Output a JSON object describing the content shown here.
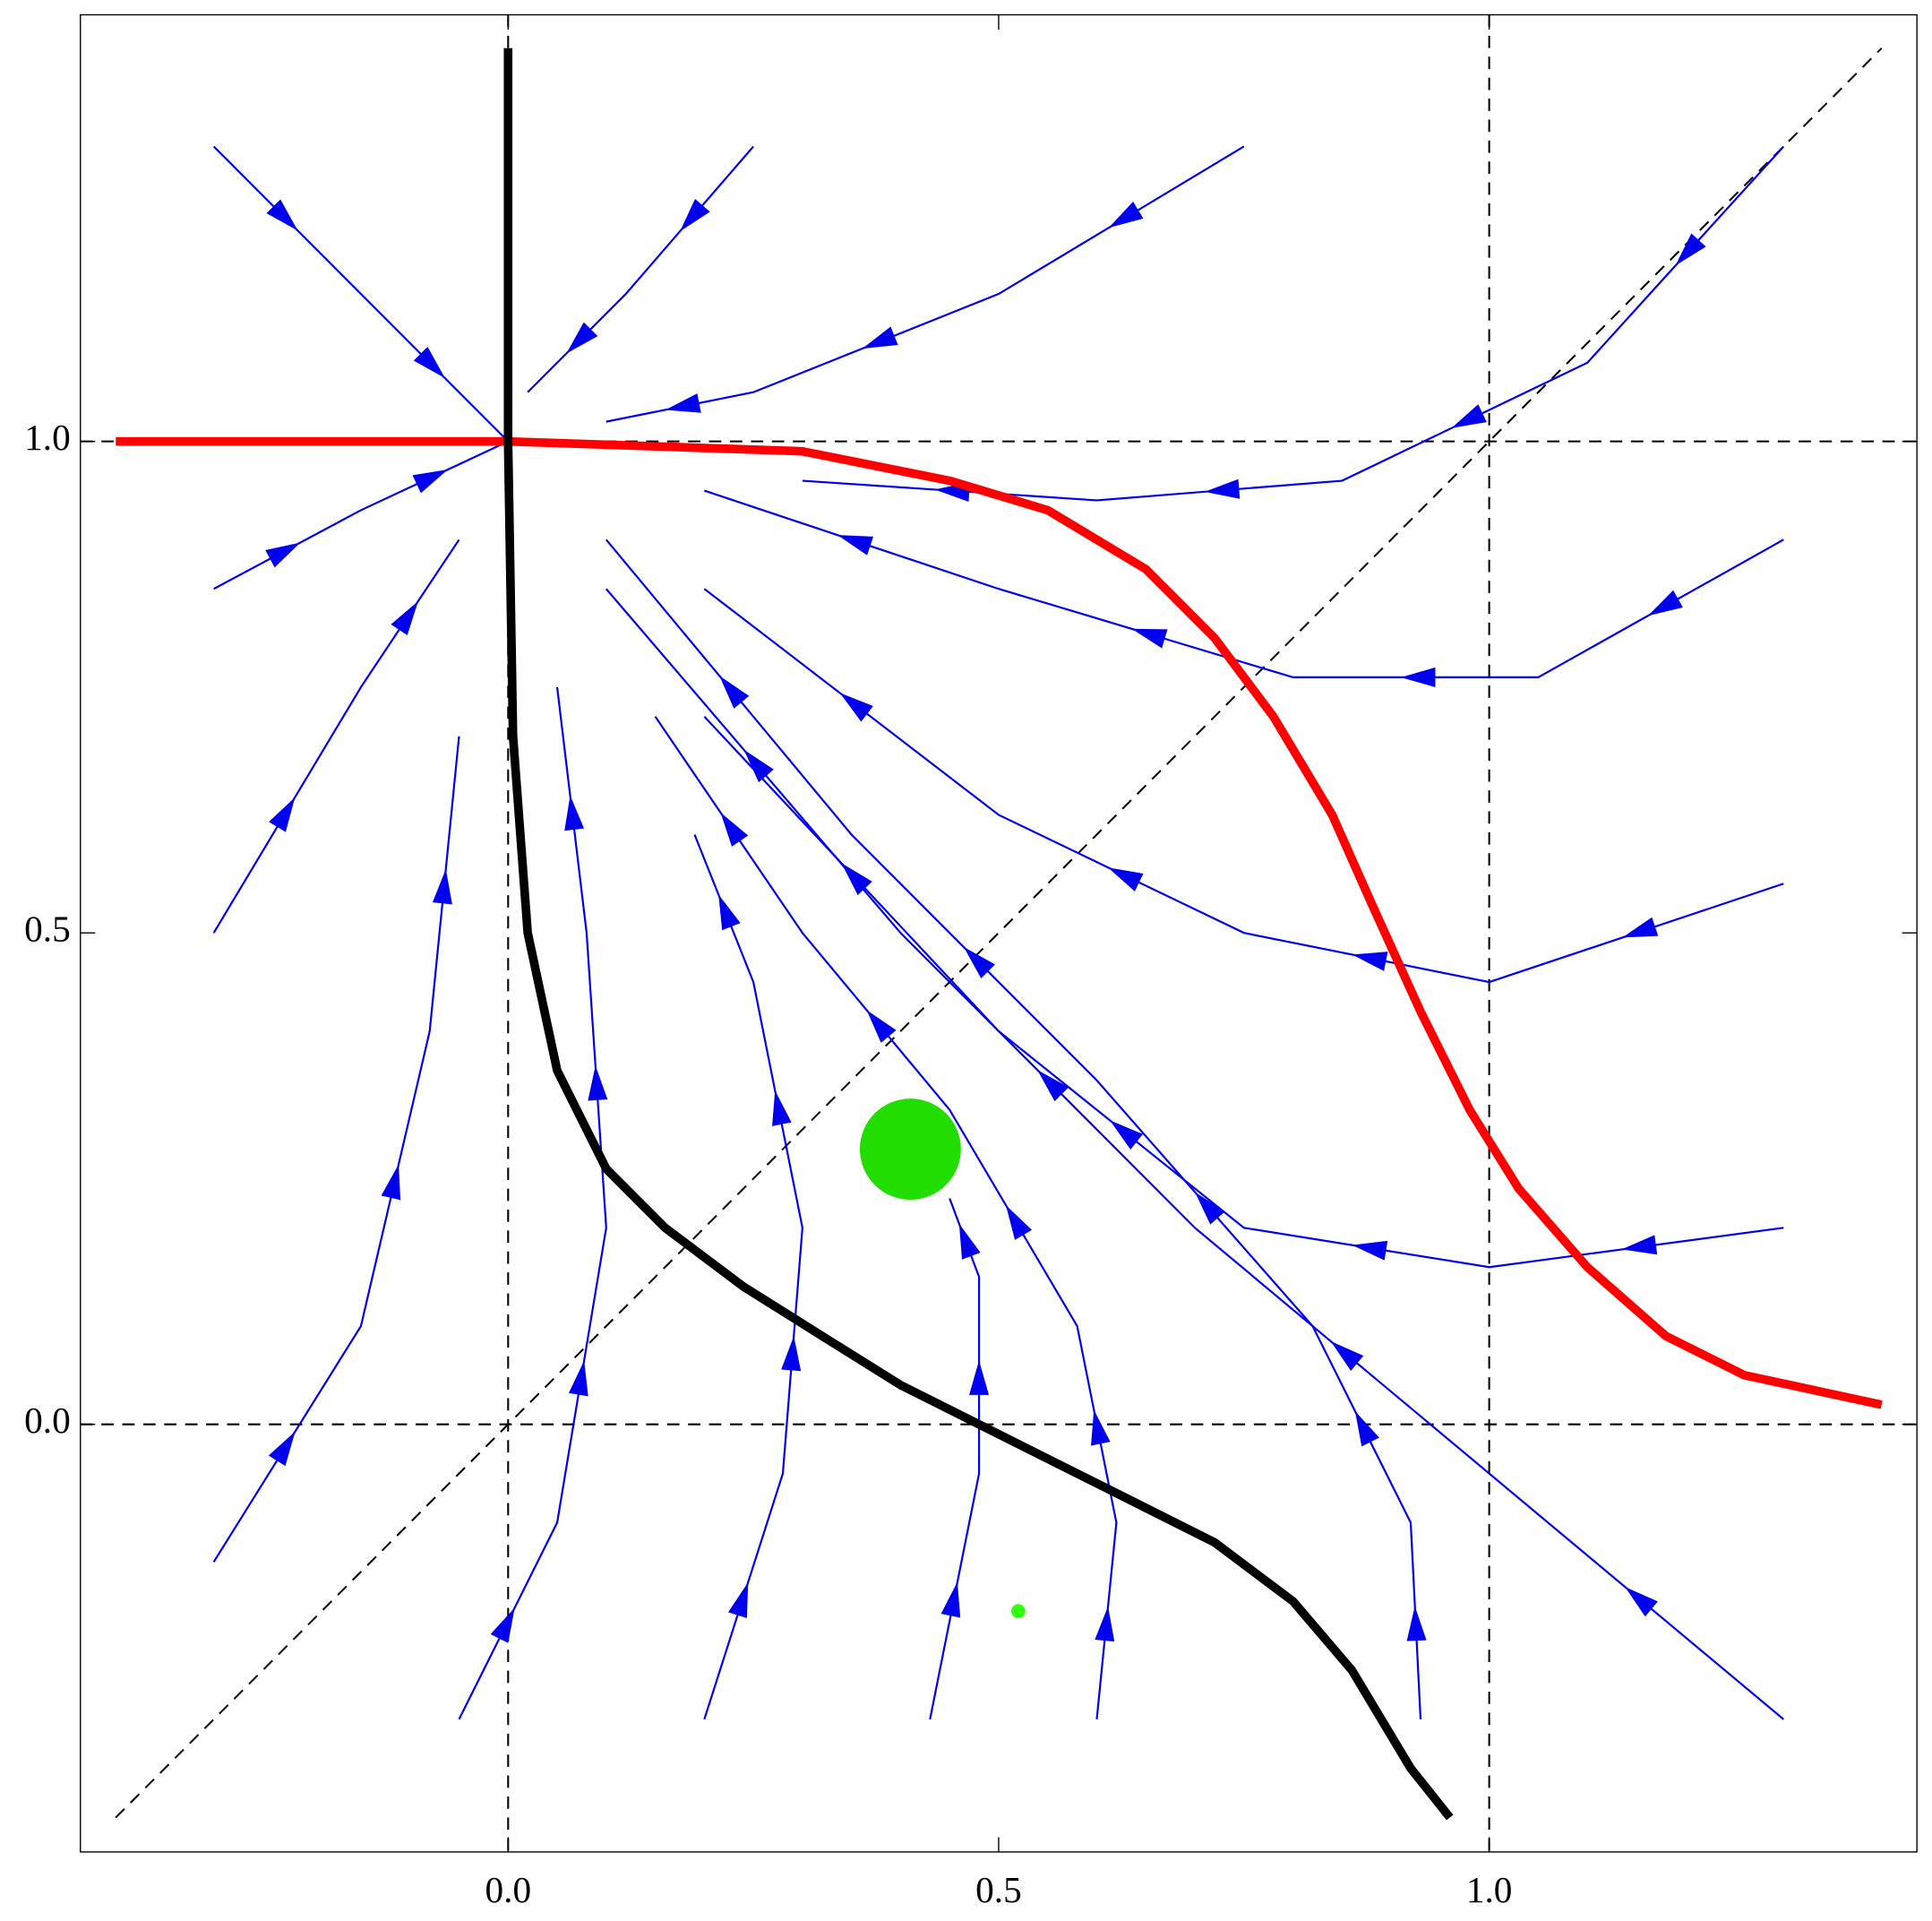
{
  "chart_data": {
    "type": "stream",
    "xlim": [
      -0.436,
      1.436
    ],
    "ylim": [
      -0.435,
      1.434
    ],
    "xticks": [
      {
        "value": 0,
        "label": "0.0"
      },
      {
        "value": 0.5,
        "label": "0.5"
      },
      {
        "value": 1,
        "label": "1.0"
      }
    ],
    "yticks": [
      {
        "value": 0,
        "label": "0.0"
      },
      {
        "value": 0.5,
        "label": "0.5"
      },
      {
        "value": 1,
        "label": "1.0"
      }
    ],
    "reference_lines": {
      "color": "#000000",
      "x": [
        [
          -0.4,
          1.4
        ]
      ],
      "y": [
        [
          -0.4,
          1.4
        ]
      ],
      "vertical": [
        0,
        1
      ],
      "horizontal": [
        0,
        1
      ]
    },
    "stream_color": "#0000ee",
    "streamlines": [
      {
        "x": [
          -0.3,
          -0.15,
          0
        ],
        "y": [
          1.3,
          1.15,
          1
        ]
      },
      {
        "x": [
          -0.3,
          -0.15,
          0
        ],
        "y": [
          0.85,
          0.93,
          1
        ]
      },
      {
        "x": [
          -0.3,
          -0.15,
          -0.05
        ],
        "y": [
          0.5,
          0.75,
          0.9
        ]
      },
      {
        "x": [
          -0.3,
          -0.15,
          -0.08,
          -0.05
        ],
        "y": [
          -0.14,
          0.1,
          0.4,
          0.7
        ]
      },
      {
        "x": [
          -0.05,
          0.05,
          0.1,
          0.08,
          0.05
        ],
        "y": [
          -0.3,
          -0.1,
          0.2,
          0.5,
          0.75
        ]
      },
      {
        "x": [
          0.2,
          0.28,
          0.3,
          0.25,
          0.19
        ],
        "y": [
          -0.3,
          -0.05,
          0.2,
          0.45,
          0.6
        ]
      },
      {
        "x": [
          0.43,
          0.48,
          0.48,
          0.45
        ],
        "y": [
          -0.3,
          -0.05,
          0.15,
          0.23
        ]
      },
      {
        "x": [
          0.6,
          0.62,
          0.58,
          0.45,
          0.3,
          0.15
        ],
        "y": [
          -0.3,
          -0.1,
          0.1,
          0.32,
          0.5,
          0.72
        ]
      },
      {
        "x": [
          0.93,
          0.92,
          0.82,
          0.6,
          0.35,
          0.1
        ],
        "y": [
          -0.3,
          -0.1,
          0.1,
          0.35,
          0.6,
          0.9
        ]
      },
      {
        "x": [
          1.3,
          1.0,
          0.7,
          0.4,
          0.1
        ],
        "y": [
          -0.3,
          -0.05,
          0.2,
          0.5,
          0.85
        ]
      },
      {
        "x": [
          1.3,
          1.0,
          0.75,
          0.5,
          0.2
        ],
        "y": [
          0.2,
          0.16,
          0.2,
          0.4,
          0.72
        ]
      },
      {
        "x": [
          1.3,
          1.0,
          0.75,
          0.5,
          0.2
        ],
        "y": [
          0.55,
          0.45,
          0.5,
          0.62,
          0.85
        ]
      },
      {
        "x": [
          1.3,
          1.05,
          0.8,
          0.5,
          0.2
        ],
        "y": [
          0.9,
          0.76,
          0.76,
          0.85,
          0.95
        ]
      },
      {
        "x": [
          1.3,
          1.1,
          0.85,
          0.6,
          0.3
        ],
        "y": [
          1.3,
          1.08,
          0.96,
          0.94,
          0.96
        ]
      },
      {
        "x": [
          0.75,
          0.5,
          0.25,
          0.1
        ],
        "y": [
          1.3,
          1.15,
          1.05,
          1.02
        ]
      },
      {
        "x": [
          0.25,
          0.12,
          0.02
        ],
        "y": [
          1.3,
          1.15,
          1.05
        ]
      }
    ],
    "series": [
      {
        "color": "#ff0000",
        "x": [
          -0.4,
          0,
          0.3,
          0.45,
          0.55,
          0.65,
          0.72,
          0.78,
          0.84,
          0.88,
          0.93,
          0.98,
          1.03,
          1.1,
          1.18,
          1.26,
          1.4
        ],
        "values": [
          1,
          1,
          0.99,
          0.96,
          0.93,
          0.87,
          0.8,
          0.72,
          0.62,
          0.53,
          0.42,
          0.32,
          0.24,
          0.16,
          0.09,
          0.05,
          0.02
        ]
      },
      {
        "color": "#000000",
        "x": [
          0,
          0,
          0.005,
          0.02,
          0.05,
          0.1,
          0.16,
          0.24,
          0.32,
          0.4,
          0.5,
          0.62,
          0.72,
          0.8,
          0.86,
          0.92,
          0.96
        ],
        "values": [
          1.4,
          1.0,
          0.7,
          0.5,
          0.36,
          0.26,
          0.2,
          0.14,
          0.09,
          0.04,
          -0.01,
          -0.07,
          -0.12,
          -0.18,
          -0.25,
          -0.35,
          -0.4
        ]
      }
    ],
    "points": {
      "x": [
        0.41,
        0.52
      ],
      "y": [
        0.28,
        -0.19
      ],
      "size": [
        50,
        7
      ],
      "color": [
        "#22dd00",
        "#33ff11"
      ]
    }
  }
}
